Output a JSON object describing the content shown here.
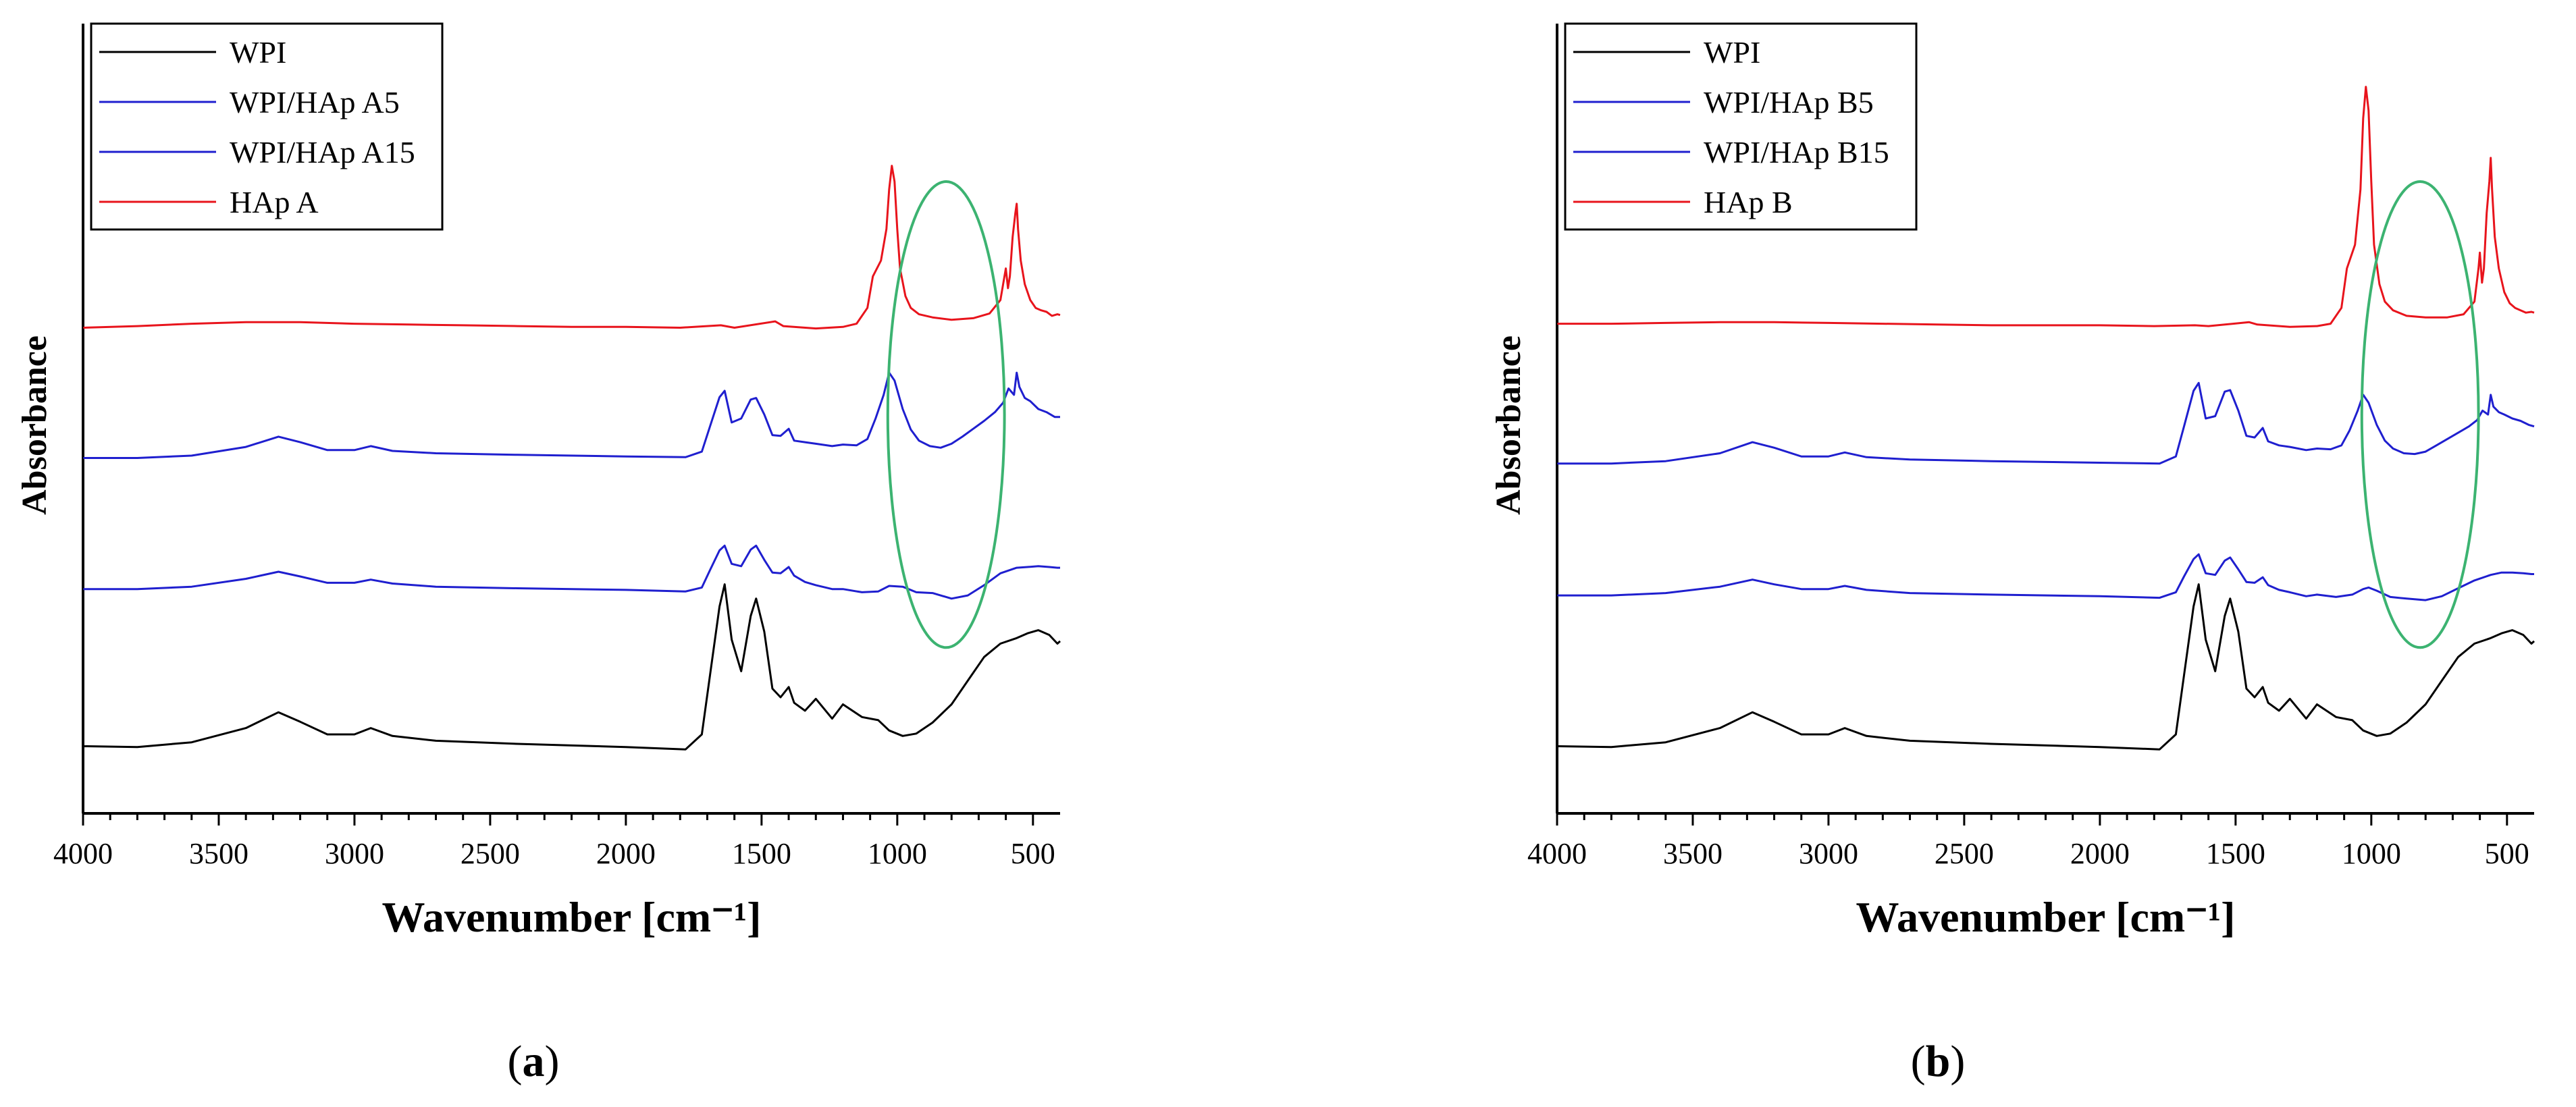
{
  "chart_data": [
    {
      "type": "line",
      "panel_label": "a",
      "xlabel": "Wavenumber [cm⁻¹]",
      "ylabel": "Absorbance",
      "xlim": [
        4000,
        400
      ],
      "xticks": [
        4000,
        3500,
        3000,
        2500,
        2000,
        1500,
        1000,
        500
      ],
      "ylim": [
        0,
        1
      ],
      "grid": false,
      "legend_position": "top-left",
      "annotation": {
        "shape": "circle",
        "color": "#3cb371",
        "center_x": 820,
        "center_y": 0.505,
        "radius_x": 215,
        "radius_y": 0.295
      },
      "series": [
        {
          "name": "WPI",
          "color": "#000000",
          "x": [
            3999,
            3800,
            3600,
            3400,
            3280,
            3200,
            3100,
            3000,
            2940,
            2860,
            2700,
            2400,
            2000,
            1780,
            1720,
            1690,
            1655,
            1636,
            1610,
            1575,
            1540,
            1520,
            1490,
            1460,
            1430,
            1400,
            1380,
            1340,
            1300,
            1240,
            1200,
            1130,
            1070,
            1030,
            980,
            930,
            870,
            800,
            740,
            680,
            620,
            560,
            520,
            480,
            440,
            410,
            400
          ],
          "y": [
            0.085,
            0.084,
            0.09,
            0.108,
            0.128,
            0.116,
            0.1,
            0.1,
            0.108,
            0.098,
            0.092,
            0.088,
            0.084,
            0.081,
            0.1,
            0.175,
            0.262,
            0.29,
            0.22,
            0.18,
            0.25,
            0.272,
            0.23,
            0.158,
            0.147,
            0.16,
            0.14,
            0.13,
            0.145,
            0.12,
            0.138,
            0.122,
            0.118,
            0.105,
            0.098,
            0.101,
            0.115,
            0.138,
            0.168,
            0.198,
            0.215,
            0.222,
            0.228,
            0.232,
            0.226,
            0.215,
            0.218
          ]
        },
        {
          "name": "WPI/HAp A5",
          "color": "#1f1fcf",
          "x": [
            3999,
            3800,
            3600,
            3400,
            3280,
            3200,
            3100,
            3000,
            2940,
            2860,
            2700,
            2400,
            2000,
            1780,
            1720,
            1690,
            1655,
            1636,
            1610,
            1575,
            1540,
            1520,
            1490,
            1460,
            1430,
            1400,
            1380,
            1340,
            1300,
            1240,
            1200,
            1130,
            1070,
            1030,
            980,
            930,
            870,
            800,
            740,
            680,
            620,
            560,
            520,
            480,
            440,
            410,
            400
          ],
          "y": [
            0.284,
            0.284,
            0.287,
            0.297,
            0.306,
            0.3,
            0.292,
            0.292,
            0.296,
            0.291,
            0.287,
            0.285,
            0.283,
            0.281,
            0.286,
            0.308,
            0.333,
            0.339,
            0.316,
            0.313,
            0.334,
            0.339,
            0.321,
            0.305,
            0.304,
            0.312,
            0.301,
            0.293,
            0.289,
            0.284,
            0.284,
            0.28,
            0.281,
            0.288,
            0.287,
            0.28,
            0.279,
            0.272,
            0.276,
            0.289,
            0.304,
            0.311,
            0.312,
            0.313,
            0.312,
            0.311,
            0.311
          ]
        },
        {
          "name": "WPI/HAp A15",
          "color": "#1f1fcf",
          "x": [
            3999,
            3800,
            3600,
            3400,
            3280,
            3200,
            3100,
            3000,
            2940,
            2860,
            2700,
            2400,
            2000,
            1780,
            1720,
            1690,
            1655,
            1636,
            1610,
            1575,
            1540,
            1520,
            1490,
            1460,
            1430,
            1400,
            1380,
            1340,
            1300,
            1240,
            1200,
            1150,
            1110,
            1080,
            1050,
            1030,
            1010,
            980,
            950,
            920,
            880,
            840,
            800,
            760,
            720,
            680,
            640,
            610,
            590,
            570,
            560,
            550,
            530,
            510,
            480,
            450,
            420,
            400
          ],
          "y": [
            0.45,
            0.45,
            0.453,
            0.464,
            0.477,
            0.47,
            0.46,
            0.46,
            0.465,
            0.459,
            0.456,
            0.454,
            0.452,
            0.451,
            0.458,
            0.49,
            0.527,
            0.535,
            0.495,
            0.5,
            0.524,
            0.526,
            0.505,
            0.479,
            0.478,
            0.487,
            0.472,
            0.47,
            0.468,
            0.465,
            0.467,
            0.466,
            0.474,
            0.5,
            0.53,
            0.558,
            0.548,
            0.512,
            0.486,
            0.472,
            0.465,
            0.463,
            0.468,
            0.477,
            0.487,
            0.497,
            0.508,
            0.52,
            0.538,
            0.53,
            0.558,
            0.54,
            0.526,
            0.522,
            0.512,
            0.508,
            0.502,
            0.502
          ]
        },
        {
          "name": "HAp A",
          "color": "#e8141c",
          "x": [
            3999,
            3800,
            3600,
            3400,
            3200,
            3000,
            2800,
            2600,
            2400,
            2200,
            2000,
            1800,
            1650,
            1600,
            1450,
            1420,
            1300,
            1200,
            1150,
            1110,
            1090,
            1060,
            1040,
            1030,
            1020,
            1010,
            1000,
            990,
            970,
            950,
            920,
            870,
            800,
            720,
            660,
            620,
            605,
            600,
            592,
            585,
            575,
            565,
            560,
            555,
            545,
            530,
            510,
            490,
            470,
            450,
            430,
            410,
            400
          ],
          "y": [
            0.615,
            0.617,
            0.62,
            0.622,
            0.622,
            0.62,
            0.619,
            0.618,
            0.617,
            0.616,
            0.616,
            0.615,
            0.618,
            0.615,
            0.623,
            0.617,
            0.614,
            0.616,
            0.62,
            0.64,
            0.68,
            0.7,
            0.74,
            0.79,
            0.82,
            0.8,
            0.74,
            0.69,
            0.655,
            0.64,
            0.632,
            0.628,
            0.625,
            0.627,
            0.633,
            0.65,
            0.68,
            0.69,
            0.665,
            0.68,
            0.73,
            0.76,
            0.772,
            0.74,
            0.7,
            0.67,
            0.65,
            0.64,
            0.637,
            0.635,
            0.63,
            0.632,
            0.631
          ]
        }
      ]
    },
    {
      "type": "line",
      "panel_label": "b",
      "xlabel": "Wavenumber [cm⁻¹]",
      "ylabel": "Absorbance",
      "xlim": [
        4000,
        400
      ],
      "xticks": [
        4000,
        3500,
        3000,
        2500,
        2000,
        1500,
        1000,
        500
      ],
      "ylim": [
        0,
        1
      ],
      "grid": false,
      "legend_position": "top-left",
      "annotation": {
        "shape": "circle",
        "color": "#3cb371",
        "center_x": 820,
        "center_y": 0.505,
        "radius_x": 215,
        "radius_y": 0.295
      },
      "series": [
        {
          "name": "WPI",
          "color": "#000000",
          "x": [
            3999,
            3800,
            3600,
            3400,
            3280,
            3200,
            3100,
            3000,
            2940,
            2860,
            2700,
            2400,
            2000,
            1780,
            1720,
            1690,
            1655,
            1636,
            1610,
            1575,
            1540,
            1520,
            1490,
            1460,
            1430,
            1400,
            1380,
            1340,
            1300,
            1240,
            1200,
            1130,
            1070,
            1030,
            980,
            930,
            870,
            800,
            740,
            680,
            620,
            560,
            520,
            480,
            440,
            410,
            400
          ],
          "y": [
            0.085,
            0.084,
            0.09,
            0.108,
            0.128,
            0.116,
            0.1,
            0.1,
            0.108,
            0.098,
            0.092,
            0.088,
            0.084,
            0.081,
            0.1,
            0.175,
            0.262,
            0.29,
            0.22,
            0.18,
            0.25,
            0.272,
            0.23,
            0.158,
            0.147,
            0.16,
            0.14,
            0.13,
            0.145,
            0.12,
            0.138,
            0.122,
            0.118,
            0.105,
            0.098,
            0.101,
            0.115,
            0.138,
            0.168,
            0.198,
            0.215,
            0.222,
            0.228,
            0.232,
            0.226,
            0.215,
            0.218
          ]
        },
        {
          "name": "WPI/HAp B5",
          "color": "#1f1fcf",
          "x": [
            3999,
            3800,
            3600,
            3400,
            3280,
            3200,
            3100,
            3000,
            2940,
            2860,
            2700,
            2400,
            2000,
            1780,
            1720,
            1690,
            1655,
            1636,
            1610,
            1575,
            1540,
            1520,
            1490,
            1460,
            1430,
            1400,
            1380,
            1340,
            1300,
            1240,
            1200,
            1130,
            1070,
            1030,
            1010,
            980,
            930,
            870,
            800,
            740,
            680,
            620,
            560,
            520,
            480,
            440,
            410,
            400
          ],
          "y": [
            0.276,
            0.276,
            0.279,
            0.287,
            0.296,
            0.29,
            0.284,
            0.284,
            0.288,
            0.283,
            0.279,
            0.277,
            0.275,
            0.273,
            0.28,
            0.3,
            0.322,
            0.328,
            0.304,
            0.302,
            0.32,
            0.324,
            0.309,
            0.293,
            0.292,
            0.299,
            0.289,
            0.283,
            0.28,
            0.275,
            0.277,
            0.274,
            0.277,
            0.284,
            0.286,
            0.282,
            0.274,
            0.272,
            0.27,
            0.275,
            0.285,
            0.295,
            0.302,
            0.305,
            0.305,
            0.304,
            0.303,
            0.303
          ]
        },
        {
          "name": "WPI/HAp B15",
          "color": "#1f1fcf",
          "x": [
            3999,
            3800,
            3600,
            3400,
            3280,
            3200,
            3100,
            3000,
            2940,
            2860,
            2700,
            2400,
            2000,
            1780,
            1720,
            1690,
            1655,
            1636,
            1610,
            1575,
            1540,
            1520,
            1490,
            1460,
            1430,
            1400,
            1380,
            1340,
            1300,
            1240,
            1200,
            1150,
            1110,
            1080,
            1050,
            1030,
            1010,
            980,
            950,
            920,
            880,
            840,
            800,
            760,
            720,
            680,
            640,
            610,
            590,
            570,
            560,
            550,
            530,
            510,
            480,
            450,
            420,
            400
          ],
          "y": [
            0.443,
            0.443,
            0.446,
            0.456,
            0.47,
            0.463,
            0.452,
            0.452,
            0.457,
            0.451,
            0.448,
            0.446,
            0.444,
            0.443,
            0.452,
            0.49,
            0.535,
            0.545,
            0.5,
            0.503,
            0.534,
            0.536,
            0.51,
            0.478,
            0.476,
            0.488,
            0.471,
            0.466,
            0.464,
            0.46,
            0.462,
            0.461,
            0.466,
            0.485,
            0.51,
            0.53,
            0.52,
            0.492,
            0.472,
            0.462,
            0.456,
            0.455,
            0.458,
            0.466,
            0.474,
            0.482,
            0.49,
            0.498,
            0.51,
            0.505,
            0.53,
            0.515,
            0.508,
            0.505,
            0.5,
            0.497,
            0.492,
            0.49
          ]
        },
        {
          "name": "HAp B",
          "color": "#e8141c",
          "x": [
            3999,
            3800,
            3600,
            3400,
            3200,
            3000,
            2800,
            2600,
            2400,
            2200,
            2000,
            1800,
            1650,
            1600,
            1450,
            1420,
            1300,
            1200,
            1150,
            1110,
            1090,
            1060,
            1040,
            1030,
            1020,
            1010,
            1000,
            990,
            970,
            950,
            920,
            870,
            800,
            720,
            660,
            620,
            605,
            600,
            592,
            585,
            575,
            565,
            560,
            555,
            545,
            530,
            510,
            490,
            470,
            450,
            430,
            410,
            400
          ],
          "y": [
            0.62,
            0.62,
            0.621,
            0.622,
            0.622,
            0.621,
            0.62,
            0.619,
            0.618,
            0.618,
            0.618,
            0.617,
            0.618,
            0.617,
            0.622,
            0.619,
            0.616,
            0.617,
            0.62,
            0.64,
            0.69,
            0.72,
            0.79,
            0.88,
            0.92,
            0.89,
            0.8,
            0.72,
            0.67,
            0.648,
            0.637,
            0.63,
            0.628,
            0.628,
            0.632,
            0.648,
            0.69,
            0.71,
            0.672,
            0.69,
            0.76,
            0.8,
            0.83,
            0.79,
            0.73,
            0.69,
            0.66,
            0.646,
            0.64,
            0.637,
            0.634,
            0.635,
            0.634
          ]
        }
      ]
    }
  ]
}
